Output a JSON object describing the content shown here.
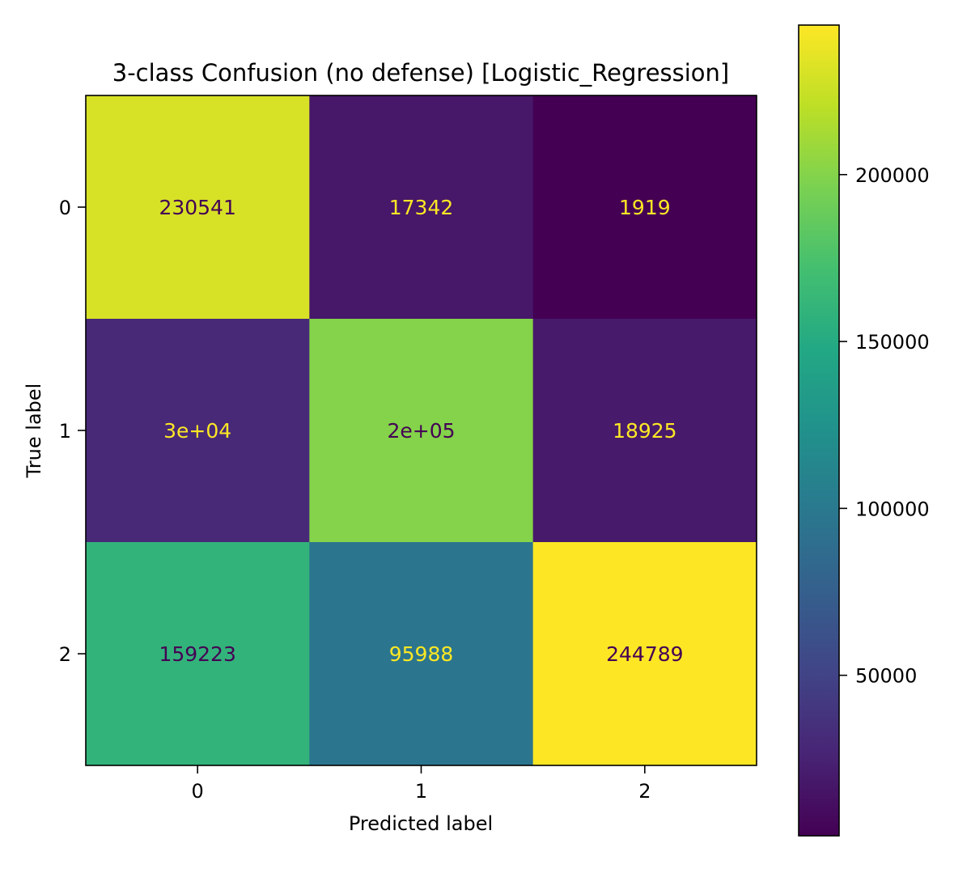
{
  "chart_data": {
    "type": "heatmap",
    "title": "3-class Confusion (no defense) [Logistic_Regression]",
    "xlabel": "Predicted label",
    "ylabel": "True label",
    "x_categories": [
      "0",
      "1",
      "2"
    ],
    "y_categories": [
      "0",
      "1",
      "2"
    ],
    "values": [
      [
        230541,
        17342,
        1919
      ],
      [
        30000,
        200000,
        18925
      ],
      [
        159223,
        95988,
        244789
      ]
    ],
    "cell_labels": [
      [
        "230541",
        "17342",
        "1919"
      ],
      [
        "3e+04",
        "2e+05",
        "18925"
      ],
      [
        "159223",
        "95988",
        "244789"
      ]
    ],
    "colormap": "viridis",
    "colorbar": {
      "range": [
        1919,
        244789
      ],
      "ticks": [
        50000,
        100000,
        150000,
        200000
      ],
      "tick_labels": [
        "50000",
        "100000",
        "150000",
        "200000"
      ]
    },
    "text_colors": {
      "dark": "#440154",
      "light": "#fde725"
    }
  }
}
